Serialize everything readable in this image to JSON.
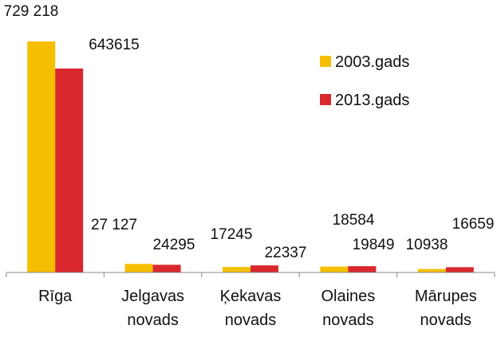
{
  "chart_data": {
    "type": "bar",
    "categories": [
      "Rīga",
      "Jelgavas novads",
      "Ķekavas novads",
      "Olaines novads",
      "Mārupes novads"
    ],
    "series": [
      {
        "name": "2003.gads",
        "color": "#f5bf00",
        "values": [
          729218,
          27127,
          17245,
          18584,
          10938
        ],
        "value_labels": [
          "729 218",
          "27 127",
          "17245",
          "18584",
          "10938"
        ]
      },
      {
        "name": "2013.gads",
        "color": "#d9272e",
        "values": [
          643615,
          24295,
          22337,
          19849,
          16659
        ],
        "value_labels": [
          "643615",
          "24295",
          "22337",
          "19849",
          "16659"
        ]
      }
    ],
    "legend": "upper right"
  }
}
